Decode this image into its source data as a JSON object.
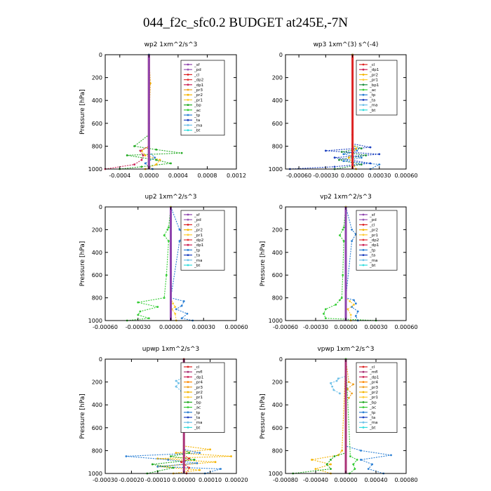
{
  "title": "044_f2c_sfc0.2  BUDGET at245E,-7N",
  "colors": {
    "sf": "#8e44ad",
    "pd": "#9b59b6",
    "cl": "#dd2222",
    "dp2": "#e33333",
    "dp1": "#cc2255",
    "pr3": "#f0a020",
    "pr2": "#f5b400",
    "pr1": "#ffcc33",
    "pr4": "#ff8800",
    "bp": "#22aa22",
    "bp1": "#1e8f3e",
    "ac": "#33cc33",
    "tp": "#2a7fd4",
    "ta": "#1a3fbf",
    "ma": "#6ec0e8",
    "bt": "#33dddd",
    "mfl": "#aa3377"
  },
  "chart_data": [
    {
      "type": "line",
      "title": "wp2",
      "units": "1xm^2/s^3",
      "ylabel": "Pressure [hPa]",
      "ylim": [
        1000,
        0
      ],
      "yticks": [
        "0",
        "200",
        "400",
        "600",
        "800",
        "1000"
      ],
      "xlim": [
        -0.0006,
        0.0012
      ],
      "xticks": [
        "-0.0004",
        "0.0000",
        "0.0004",
        "0.0008",
        "0.0012"
      ],
      "legend": [
        "_sf",
        "_pd",
        "_cl",
        "_dp2",
        "_dp1",
        "_pr3",
        "_pr2",
        "_pr1",
        "_bp",
        "_ac",
        "_tp",
        "_ta",
        "_ma",
        "_bt"
      ],
      "series": [
        {
          "name": "_bp",
          "color": "bp",
          "y": [
            1000,
            980,
            950,
            920,
            880,
            860,
            830,
            800,
            700,
            500,
            300,
            0
          ],
          "x": [
            -0.0004,
            -0.0001,
            0.0003,
            0.0001,
            -0.0003,
            0.00045,
            0.0001,
            -0.0002,
            0,
            0,
            0,
            0
          ]
        },
        {
          "name": "_pr2",
          "color": "pr2",
          "y": [
            1000,
            960,
            920,
            880,
            840,
            800,
            600,
            250,
            0
          ],
          "x": [
            -5e-05,
            0.0001,
            0.00015,
            -5e-05,
            -0.0001,
            0,
            0,
            2e-05,
            0
          ]
        },
        {
          "name": "_dp1",
          "color": "dp1",
          "y": [
            1000,
            960,
            920,
            880,
            840,
            800,
            600,
            0
          ],
          "x": [
            -0.0006,
            -0.0002,
            -0.0001,
            -8e-05,
            -0.00012,
            0,
            0,
            0
          ]
        },
        {
          "name": "_tp",
          "color": "tp",
          "y": [
            1000,
            950,
            900,
            850,
            800,
            0
          ],
          "x": [
            5e-05,
            -5e-05,
            8e-05,
            0,
            0,
            0
          ]
        },
        {
          "name": "_cl",
          "color": "cl",
          "y": [
            1000,
            0
          ],
          "x": [
            0,
            0
          ]
        },
        {
          "name": "_sf",
          "color": "sf",
          "y": [
            1000,
            0
          ],
          "x": [
            0,
            0
          ]
        }
      ]
    },
    {
      "type": "line",
      "title": "wp3",
      "units": "1xm^(3) s^(-4)",
      "ylabel": "",
      "ylim": [
        1000,
        0
      ],
      "yticks": [
        "0",
        "200",
        "400",
        "600",
        "800",
        "1000"
      ],
      "xlim": [
        -0.00075,
        0.0006
      ],
      "xticks": [
        "-0.00060",
        "-0.00030",
        "0.00000",
        "0.00030",
        "0.00060"
      ],
      "legend": [
        "_cl",
        "_dp1",
        "_pr2",
        "_pr1",
        "_bp1",
        "_ac",
        "_tp",
        "_ta",
        "_ma",
        "_bt"
      ],
      "series": [
        {
          "name": "_ta",
          "color": "ta",
          "y": [
            1000,
            980,
            950,
            900,
            870,
            840,
            810,
            780,
            700,
            0
          ],
          "x": [
            -0.0007,
            -0.0002,
            0.0002,
            -0.0002,
            0.0003,
            -0.0003,
            0.0002,
            0,
            0,
            0
          ]
        },
        {
          "name": "_bp1",
          "color": "bp1",
          "y": [
            1000,
            960,
            920,
            880,
            850,
            820,
            790,
            700,
            0
          ],
          "x": [
            -0.0002,
            0.0001,
            -0.00015,
            0.00015,
            -0.00012,
            0.0001,
            0,
            0,
            0
          ]
        },
        {
          "name": "_tp",
          "color": "tp",
          "y": [
            1000,
            960,
            930,
            900,
            870,
            840,
            800,
            0
          ],
          "x": [
            0.0002,
            0.0003,
            -0.0001,
            0.0001,
            -0.0001,
            5e-05,
            0,
            0
          ]
        },
        {
          "name": "_pr2",
          "color": "pr2",
          "y": [
            1000,
            900,
            820,
            780,
            0
          ],
          "x": [
            4e-05,
            -4e-05,
            4e-05,
            0,
            0
          ]
        },
        {
          "name": "_cl",
          "color": "cl",
          "y": [
            1000,
            0
          ],
          "x": [
            0,
            0
          ]
        }
      ]
    },
    {
      "type": "line",
      "title": "up2",
      "units": "1xm^2/s^3",
      "ylabel": "Pressure [hPa]",
      "ylim": [
        1000,
        0
      ],
      "yticks": [
        "0",
        "200",
        "400",
        "600",
        "800",
        "1000"
      ],
      "xlim": [
        -0.0006,
        0.0006
      ],
      "xticks": [
        "-0.00060",
        "-0.00030",
        "0.00000",
        "0.00030",
        "0.00060"
      ],
      "legend": [
        "_sf",
        "_pd",
        "_cl",
        "_pr2",
        "_pr1",
        "_dp2",
        "_dp1",
        "_tp",
        "_ta",
        "_ma",
        "_bt"
      ],
      "series": [
        {
          "name": "_dp2",
          "color": "ac",
          "y": [
            1000,
            980,
            950,
            920,
            880,
            840,
            800,
            600,
            300,
            250,
            200,
            180,
            0
          ],
          "x": [
            -0.0004,
            -0.0002,
            -0.0003,
            -0.00028,
            -0.00012,
            -0.0003,
            -6e-05,
            -4e-05,
            -2e-05,
            -6e-05,
            -3e-05,
            -2e-05,
            0
          ]
        },
        {
          "name": "_tp",
          "color": "tp",
          "y": [
            1000,
            980,
            940,
            900,
            870,
            830,
            800,
            300,
            240,
            200,
            0
          ],
          "x": [
            0.0002,
            0.0001,
            0.00015,
            5e-05,
            0.0001,
            0.00012,
            0,
            8e-05,
            0.00012,
            8e-05,
            0
          ]
        },
        {
          "name": "_pr1",
          "color": "pr1",
          "y": [
            1000,
            940,
            900,
            880,
            850,
            800,
            0
          ],
          "x": [
            5e-05,
            4e-05,
            1e-05,
            4e-05,
            2e-05,
            0,
            0
          ]
        },
        {
          "name": "_cl",
          "color": "cl",
          "y": [
            1000,
            0
          ],
          "x": [
            0,
            0
          ]
        },
        {
          "name": "_sf",
          "color": "sf",
          "y": [
            1000,
            0
          ],
          "x": [
            0,
            0
          ]
        }
      ]
    },
    {
      "type": "line",
      "title": "vp2",
      "units": "1xm^2/s^3",
      "ylabel": "Pressure [hPa]",
      "ylim": [
        1000,
        0
      ],
      "yticks": [
        "0",
        "200",
        "400",
        "600",
        "800",
        "1000"
      ],
      "xlim": [
        -0.0006,
        0.0006
      ],
      "xticks": [
        "-0.00060",
        "-0.00030",
        "0.00000",
        "0.00030",
        "0.00060"
      ],
      "legend": [
        "_sf",
        "_pd",
        "_cl",
        "_pr2",
        "_pr1",
        "_dp2",
        "_dp1",
        "_tp",
        "_ta",
        "_ma",
        "_bt"
      ],
      "series": [
        {
          "name": "_dp2",
          "color": "ac",
          "y": [
            1000,
            980,
            940,
            900,
            860,
            820,
            800,
            600,
            300,
            250,
            200,
            180,
            0
          ],
          "x": [
            0.0003,
            -0.0002,
            -0.00022,
            -0.0002,
            -0.0001,
            -6e-05,
            -4e-05,
            -3e-05,
            -2e-05,
            -6e-05,
            -3e-05,
            -2e-05,
            0
          ]
        },
        {
          "name": "_tp",
          "color": "tp",
          "y": [
            1000,
            960,
            920,
            880,
            850,
            820,
            800,
            300,
            240,
            200,
            0
          ],
          "x": [
            0.00012,
            0.0001,
            0.00012,
            6e-05,
            0.0001,
            8e-05,
            0,
            6e-05,
            0.0001,
            6e-05,
            0
          ]
        },
        {
          "name": "_pr1",
          "color": "pr1",
          "y": [
            1000,
            950,
            900,
            860,
            830,
            800,
            0
          ],
          "x": [
            5e-05,
            5e-05,
            2e-05,
            8e-05,
            4e-05,
            0,
            0
          ]
        },
        {
          "name": "_cl",
          "color": "cl",
          "y": [
            1000,
            0
          ],
          "x": [
            0,
            0
          ]
        },
        {
          "name": "_sf",
          "color": "sf",
          "y": [
            1000,
            0
          ],
          "x": [
            0,
            0
          ]
        }
      ]
    },
    {
      "type": "line",
      "title": "upwp",
      "units": "1xm^2/s^3",
      "ylabel": "Pressure [hPa]",
      "ylim": [
        1000,
        0
      ],
      "yticks": [
        "0",
        "200",
        "400",
        "600",
        "800",
        "1000"
      ],
      "xlim": [
        -0.0003,
        0.0002
      ],
      "xticks": [
        "-0.00030",
        "-0.00020",
        "-0.00010",
        "0.00000",
        "0.00010",
        "0.00020"
      ],
      "legend": [
        "_cl",
        "_mfl",
        "_dp1",
        "_pr4",
        "_pr3",
        "_pr2",
        "_pr1",
        "_bp",
        "_ac",
        "_tp",
        "_ta",
        "_ma",
        "_bt"
      ],
      "series": [
        {
          "name": "_pr2",
          "color": "pr2",
          "y": [
            1000,
            970,
            940,
            900,
            870,
            850,
            820,
            790,
            760,
            700,
            0
          ],
          "x": [
            -4e-05,
            6e-05,
            -0.0001,
            0.00012,
            -0.0001,
            0.00018,
            -3e-05,
            0.0001,
            0,
            0,
            0
          ]
        },
        {
          "name": "_tp",
          "color": "tp",
          "y": [
            1000,
            960,
            940,
            910,
            880,
            850,
            820,
            790,
            0
          ],
          "x": [
            8e-05,
            0.00014,
            -0.0001,
            5e-05,
            -6e-05,
            -0.00022,
            6e-05,
            0,
            0
          ]
        },
        {
          "name": "_bp",
          "color": "bp",
          "y": [
            1000,
            980,
            950,
            920,
            880,
            850,
            820,
            790,
            0
          ],
          "x": [
            -0.00014,
            -0.0001,
            -4e-05,
            -0.00012,
            4e-05,
            -5e-05,
            2e-05,
            0,
            0
          ]
        },
        {
          "name": "_ma",
          "color": "ma",
          "y": [
            280,
            240,
            210,
            190,
            170,
            0
          ],
          "x": [
            -1e-05,
            -3e-05,
            -2e-05,
            -3e-05,
            -1e-05,
            0
          ]
        },
        {
          "name": "_dp1",
          "color": "cl",
          "y": [
            1000,
            950,
            900,
            870,
            840,
            0
          ],
          "x": [
            1e-05,
            2e-05,
            -1e-05,
            2e-05,
            0,
            0
          ]
        },
        {
          "name": "_mfl",
          "color": "mfl",
          "y": [
            1000,
            0
          ],
          "x": [
            0,
            0
          ]
        }
      ]
    },
    {
      "type": "line",
      "title": "vpwp",
      "units": "1xm^2/s^3",
      "ylabel": "Pressure [hPa]",
      "ylim": [
        1000,
        0
      ],
      "yticks": [
        "0",
        "200",
        "400",
        "600",
        "800",
        "1000"
      ],
      "xlim": [
        -0.0008,
        0.0008
      ],
      "xticks": [
        "-0.00080",
        "-0.00040",
        "0.00000",
        "0.00040",
        "0.00080"
      ],
      "legend": [
        "_cl",
        "_mfl",
        "_dp1",
        "_pr4",
        "_pr3",
        "_pr2",
        "_pr1",
        "_bp",
        "_ac",
        "_tp",
        "_ta",
        "_ma",
        "_bt"
      ],
      "series": [
        {
          "name": "_tp",
          "color": "tp",
          "y": [
            1000,
            960,
            920,
            880,
            840,
            800,
            760,
            0
          ],
          "x": [
            0.0005,
            0.0003,
            0.00035,
            0.0002,
            0.0006,
            0.0002,
            0,
            0
          ]
        },
        {
          "name": "_ma",
          "color": "ma",
          "y": [
            300,
            270,
            240,
            210,
            190,
            170,
            150,
            0
          ],
          "x": [
            -8e-05,
            -0.00016,
            -0.00018,
            -0.0002,
            -0.00012,
            -0.0001,
            0,
            0
          ]
        },
        {
          "name": "_pr2",
          "color": "pr2",
          "y": [
            1000,
            960,
            920,
            880,
            840,
            800,
            0
          ],
          "x": [
            -0.0002,
            -0.0004,
            -0.0002,
            -0.00045,
            -0.0001,
            -5e-05,
            0
          ]
        },
        {
          "name": "_pr3",
          "color": "pr3",
          "y": [
            340,
            300,
            260,
            220,
            200,
            0
          ],
          "x": [
            4e-05,
            8e-05,
            2e-05,
            0.0001,
            4e-05,
            0
          ]
        },
        {
          "name": "_bp",
          "color": "bp",
          "y": [
            1000,
            960,
            920,
            880,
            850,
            820,
            0
          ],
          "x": [
            -0.0007,
            -0.0002,
            -0.00025,
            -0.0002,
            -0.00015,
            0,
            0
          ]
        },
        {
          "name": "_ac",
          "color": "ac",
          "y": [
            1000,
            960,
            920,
            880,
            850,
            0
          ],
          "x": [
            5e-05,
            0.00012,
            0.0001,
            0.00015,
            6e-05,
            0
          ]
        },
        {
          "name": "_mfl",
          "color": "mfl",
          "y": [
            1000,
            0
          ],
          "x": [
            0,
            0
          ]
        }
      ]
    }
  ]
}
